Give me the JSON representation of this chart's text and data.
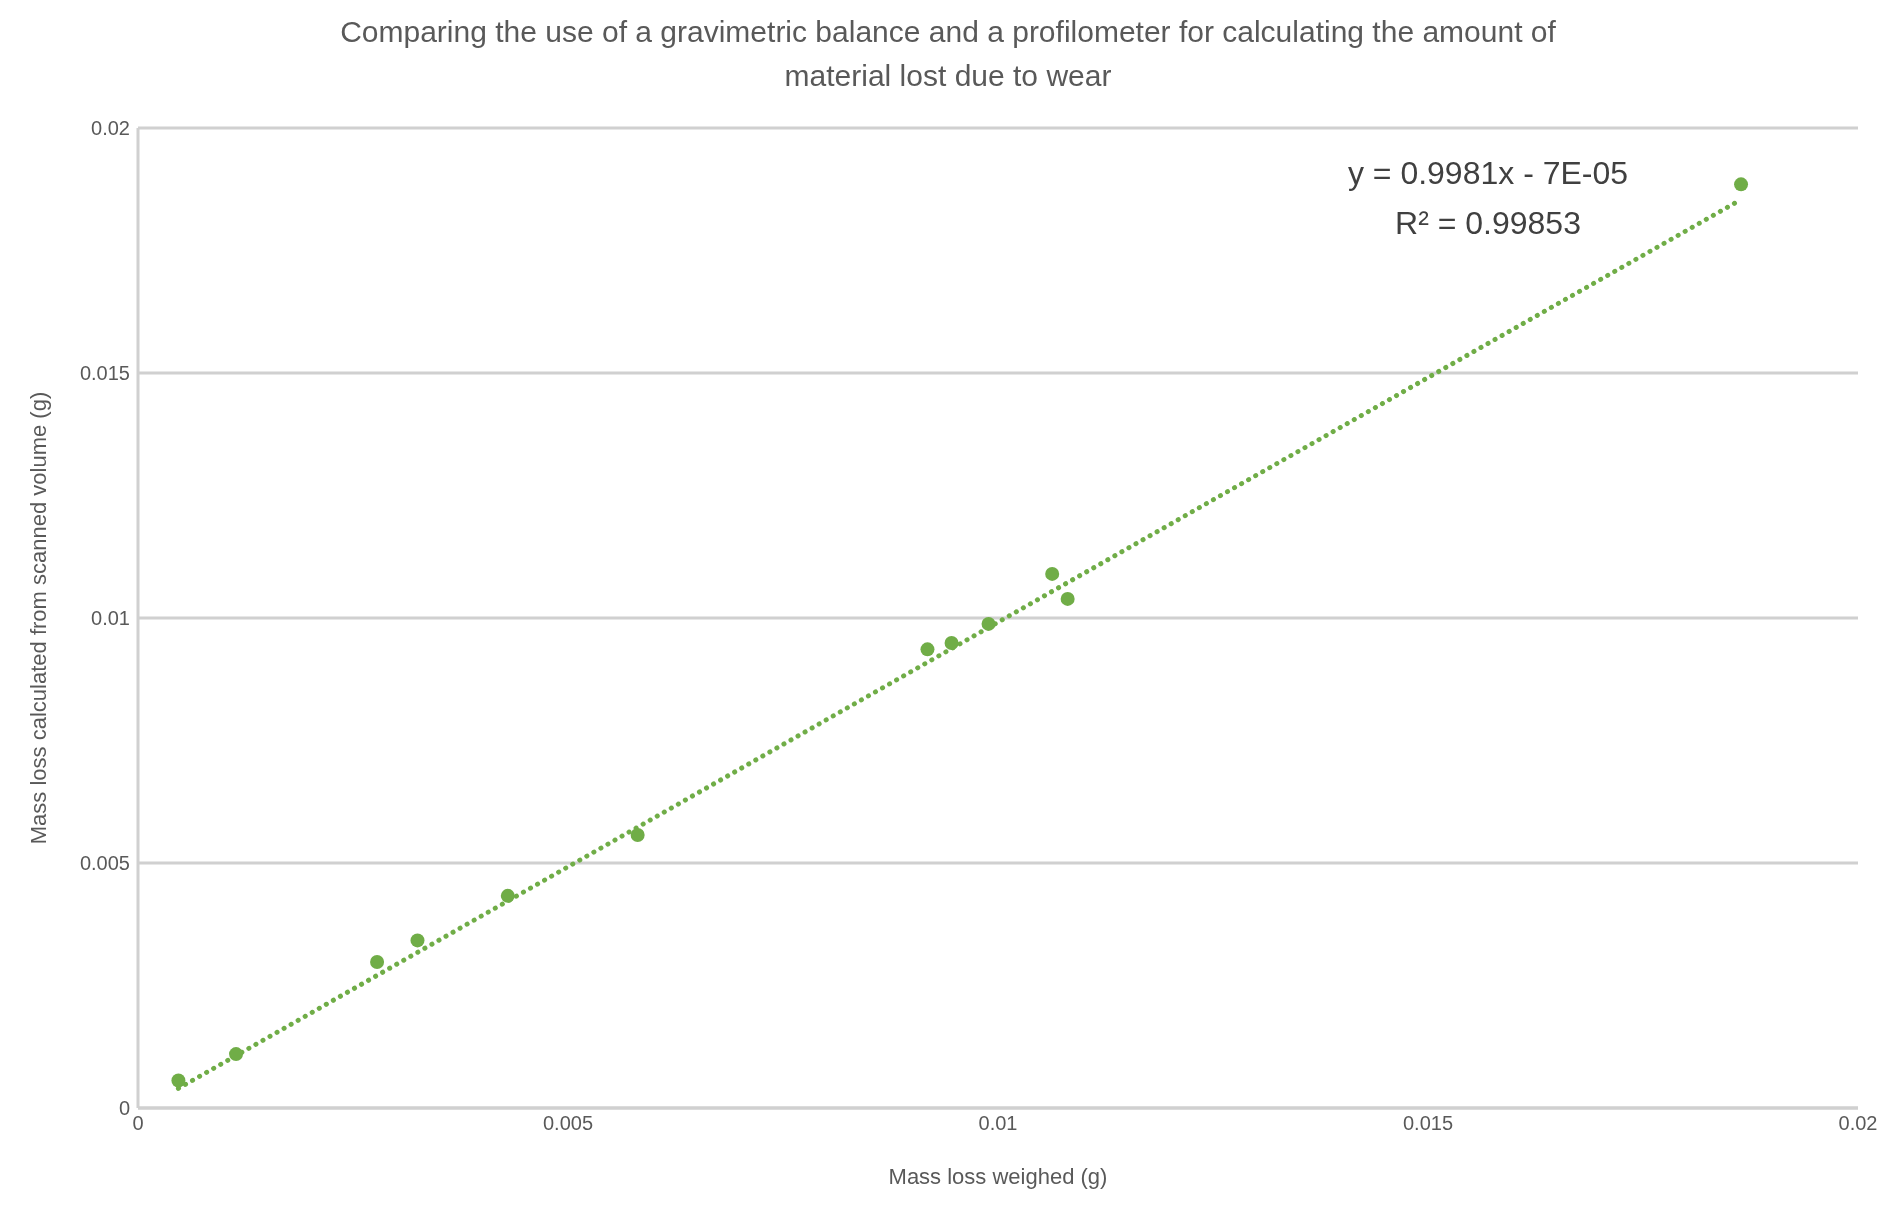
{
  "chart_data": {
    "type": "scatter",
    "subtitle": "Comparing the use of a gravimetric balance and a profilometer for calculating the amount of material lost due to wear",
    "xlabel": "Mass loss weighed (g)",
    "ylabel": "Mass loss calculated  from scanned volume (g)",
    "series": [
      {
        "color": "#70ad47",
        "marker": "circle",
        "x": [
          0.00047,
          0.00114,
          0.00278,
          0.00325,
          0.0043,
          0.00581,
          0.00918,
          0.00946,
          0.00989,
          0.01063,
          0.01081,
          0.01864
        ],
        "values": [
          0.00056,
          0.0011,
          0.00298,
          0.00342,
          0.00433,
          0.00557,
          0.00936,
          0.00949,
          0.00988,
          0.0109,
          0.01039,
          0.01885
        ]
      },
      {
        "type": "line",
        "color": "#70ad47",
        "line_style": "dotted",
        "marker": "none",
        "x": [
          0.00047,
          0.01864
        ],
        "values": [
          0.0004,
          0.01854
        ]
      }
    ],
    "annotations": [
      "y = 0.9981x - 7E-05",
      "R² = 0.99853"
    ],
    "xlim": [
      0,
      0.02
    ],
    "xticks": [
      0,
      0.005,
      0.01,
      0.015,
      0.02
    ],
    "ylim": [
      0,
      0.02
    ],
    "yticks": [
      0,
      0.005,
      0.01,
      0.015,
      0.02
    ],
    "grid": "y"
  }
}
